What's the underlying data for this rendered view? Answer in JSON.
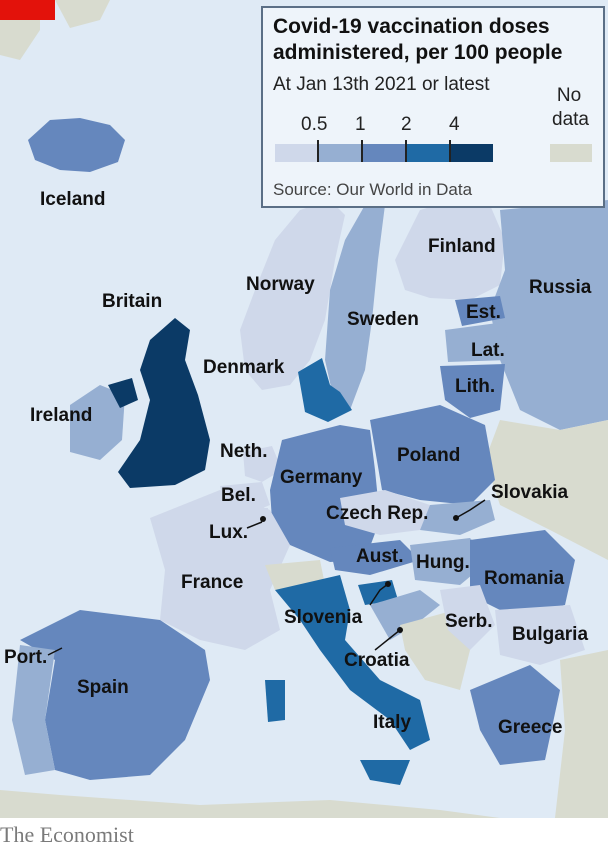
{
  "legend": {
    "title": "Covid-19 vaccination doses administered, per 100 people",
    "subtitle": "At Jan 13th 2021 or latest",
    "source": "Source: Our World in Data",
    "ticks": [
      "0.5",
      "1",
      "2",
      "4"
    ],
    "no_data_label": "No data",
    "colors": {
      "band1": "#cfd8ea",
      "band2": "#96afd2",
      "band3": "#6587bd",
      "band4": "#1f6aa5",
      "band5": "#0b3a66",
      "no_data": "#d8dbcf"
    }
  },
  "labels": {
    "iceland": "Iceland",
    "britain": "Britain",
    "ireland": "Ireland",
    "norway": "Norway",
    "finland": "Finland",
    "russia": "Russia",
    "sweden": "Sweden",
    "estonia": "Est.",
    "latvia": "Lat.",
    "lithuania": "Lith.",
    "denmark": "Denmark",
    "netherlands": "Neth.",
    "belgium": "Bel.",
    "luxembourg": "Lux.",
    "germany": "Germany",
    "poland": "Poland",
    "slovakia": "Slovakia",
    "czech": "Czech Rep.",
    "france": "France",
    "austria": "Aust.",
    "hungary": "Hung.",
    "romania": "Romania",
    "slovenia": "Slovenia",
    "serbia": "Serb.",
    "bulgaria": "Bulgaria",
    "croatia": "Croatia",
    "portugal": "Port.",
    "spain": "Spain",
    "italy": "Italy",
    "greece": "Greece"
  },
  "footer": "The Economist"
}
